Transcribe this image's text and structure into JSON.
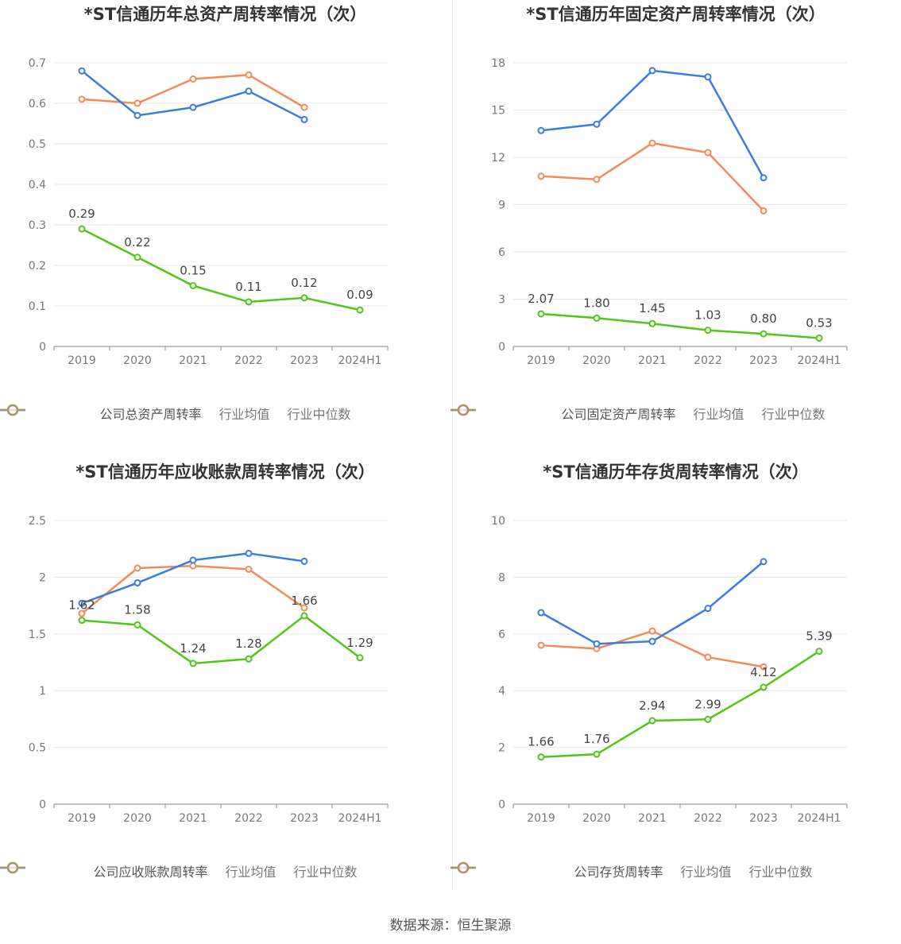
{
  "source": "数据来源：恒生聚源",
  "colors": {
    "company": "#52c41a",
    "avg": "#3b7ddd",
    "median": "#f08c5a",
    "grid": "#e6e6f0",
    "axis": "#777777"
  },
  "chart_data": [
    {
      "type": "line",
      "title": "*ST信通历年总资产周转率情况（次）",
      "categories": [
        "2019",
        "2020",
        "2021",
        "2022",
        "2023",
        "2024H1"
      ],
      "ylim": [
        0,
        0.7
      ],
      "yticks": [
        0,
        0.1,
        0.2,
        0.3,
        0.4,
        0.5,
        0.6,
        0.7
      ],
      "ytick_labels": [
        "0",
        "0.1",
        "0.2",
        "0.3",
        "0.4",
        "0.5",
        "0.6",
        "0.7"
      ],
      "legend": [
        "公司总资产周转率",
        "行业均值",
        "行业中位数"
      ],
      "series": [
        {
          "name": "公司总资产周转率",
          "values": [
            0.29,
            0.22,
            0.15,
            0.11,
            0.12,
            0.09
          ],
          "labels": [
            "0.29",
            "0.22",
            "0.15",
            "0.11",
            "0.12",
            "0.09"
          ]
        },
        {
          "name": "行业均值",
          "values": [
            0.68,
            0.57,
            0.59,
            0.63,
            0.56,
            null
          ]
        },
        {
          "name": "行业中位数",
          "values": [
            0.61,
            0.6,
            0.66,
            0.67,
            0.59,
            null
          ]
        }
      ]
    },
    {
      "type": "line",
      "title": "*ST信通历年固定资产周转率情况（次）",
      "categories": [
        "2019",
        "2020",
        "2021",
        "2022",
        "2023",
        "2024H1"
      ],
      "ylim": [
        0,
        18
      ],
      "yticks": [
        0,
        3,
        6,
        9,
        12,
        15,
        18
      ],
      "ytick_labels": [
        "0",
        "3",
        "6",
        "9",
        "12",
        "15",
        "18"
      ],
      "legend": [
        "公司固定资产周转率",
        "行业均值",
        "行业中位数"
      ],
      "series": [
        {
          "name": "公司固定资产周转率",
          "values": [
            2.07,
            1.8,
            1.45,
            1.03,
            0.8,
            0.53
          ],
          "labels": [
            "2.07",
            "1.80",
            "1.45",
            "1.03",
            "0.80",
            "0.53"
          ]
        },
        {
          "name": "行业均值",
          "values": [
            13.7,
            14.1,
            17.5,
            17.1,
            10.7,
            null
          ]
        },
        {
          "name": "行业中位数",
          "values": [
            10.8,
            10.6,
            12.9,
            12.3,
            8.6,
            null
          ]
        }
      ]
    },
    {
      "type": "line",
      "title": "*ST信通历年应收账款周转率情况（次）",
      "categories": [
        "2019",
        "2020",
        "2021",
        "2022",
        "2023",
        "2024H1"
      ],
      "ylim": [
        0,
        2.5
      ],
      "yticks": [
        0,
        0.5,
        1,
        1.5,
        2,
        2.5
      ],
      "ytick_labels": [
        "0",
        "0.5",
        "1",
        "1.5",
        "2",
        "2.5"
      ],
      "legend": [
        "公司应收账款周转率",
        "行业均值",
        "行业中位数"
      ],
      "series": [
        {
          "name": "公司应收账款周转率",
          "values": [
            1.62,
            1.58,
            1.24,
            1.28,
            1.66,
            1.29
          ],
          "labels": [
            "1.62",
            "1.58",
            "1.24",
            "1.28",
            "1.66",
            "1.29"
          ]
        },
        {
          "name": "行业均值",
          "values": [
            1.77,
            1.95,
            2.15,
            2.21,
            2.14,
            null
          ]
        },
        {
          "name": "行业中位数",
          "values": [
            1.68,
            2.08,
            2.1,
            2.07,
            1.73,
            null
          ]
        }
      ]
    },
    {
      "type": "line",
      "title": "*ST信通历年存货周转率情况（次）",
      "categories": [
        "2019",
        "2020",
        "2021",
        "2022",
        "2023",
        "2024H1"
      ],
      "ylim": [
        0,
        10
      ],
      "yticks": [
        0,
        2,
        4,
        6,
        8,
        10
      ],
      "ytick_labels": [
        "0",
        "2",
        "4",
        "6",
        "8",
        "10"
      ],
      "legend": [
        "公司存货周转率",
        "行业均值",
        "行业中位数"
      ],
      "series": [
        {
          "name": "公司存货周转率",
          "values": [
            1.66,
            1.76,
            2.94,
            2.99,
            4.12,
            5.39
          ],
          "labels": [
            "1.66",
            "1.76",
            "2.94",
            "2.99",
            "4.12",
            "5.39"
          ]
        },
        {
          "name": "行业均值",
          "values": [
            6.75,
            5.65,
            5.74,
            6.9,
            8.55,
            null
          ]
        },
        {
          "name": "行业中位数",
          "values": [
            5.6,
            5.48,
            6.1,
            5.18,
            4.84,
            null
          ]
        }
      ]
    }
  ]
}
